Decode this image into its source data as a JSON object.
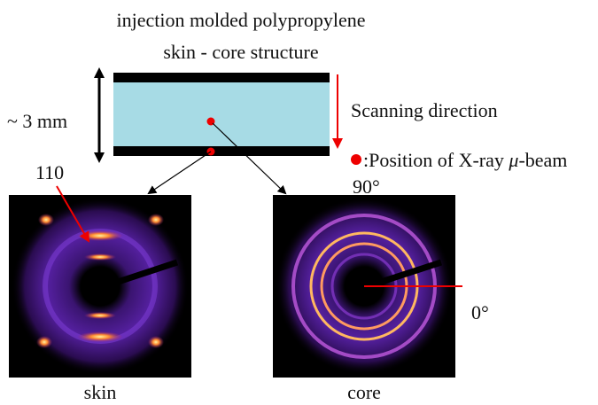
{
  "header": {
    "title": "injection molded polypropylene",
    "subtitle": "skin - core structure"
  },
  "thickness_label": "~ 3 mm",
  "scan_label": "Scanning direction",
  "legend": {
    "prefix": ":Position of X-ray ",
    "symbol": "μ",
    "suffix": "-beam"
  },
  "angle_top": "90°",
  "angle_right": "0°",
  "reflection_label": "110",
  "panels": [
    {
      "label": "skin"
    },
    {
      "label": "core"
    }
  ]
}
